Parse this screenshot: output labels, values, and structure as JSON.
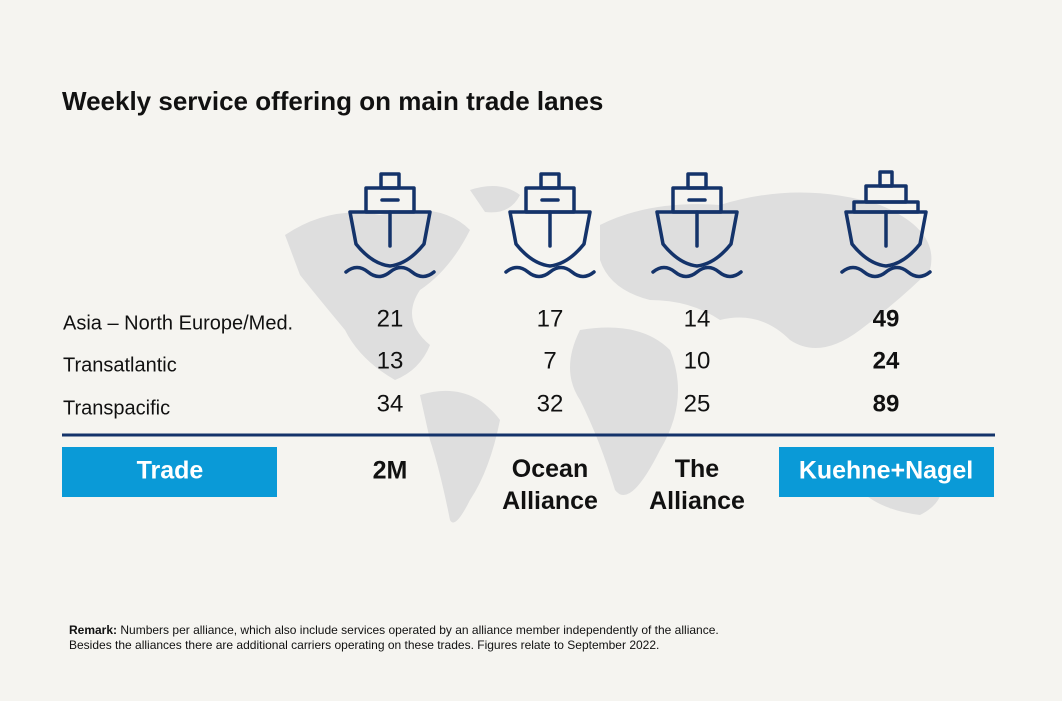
{
  "title": "Weekly service offering on main trade lanes",
  "table": {
    "columns": [
      "Trade",
      "2M",
      "Ocean Alliance",
      "The Alliance",
      "Kuehne+Nagel"
    ],
    "rows": [
      [
        "Asia – North Europe/Med.",
        21,
        17,
        14,
        49
      ],
      [
        "Transatlantic",
        13,
        7,
        10,
        24
      ],
      [
        "Transpacific",
        34,
        32,
        25,
        89
      ]
    ]
  },
  "remark": {
    "label": "Remark:",
    "lines": [
      "Numbers per alliance, which also include services operated by an alliance member independently of the alliance.",
      "Besides the alliances there are additional carriers operating on these trades. Figures relate to September 2022."
    ]
  }
}
